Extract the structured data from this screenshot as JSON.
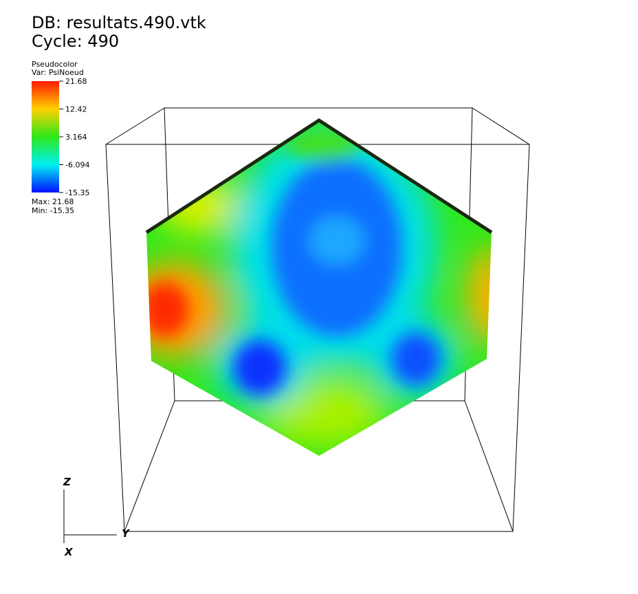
{
  "header": {
    "database": "DB: resultats.490.vtk",
    "cycle": "Cycle: 490"
  },
  "legend": {
    "plot": "Pseudocolor",
    "variable": "Var: PsiNoeud",
    "ticks": [
      "21.68",
      "12.42",
      "3.164",
      "-6.094",
      "-15.35"
    ],
    "max": "Max: 21.68",
    "min": "Min: -15.35"
  },
  "axes": {
    "z": "Z",
    "y": "Y",
    "x": "X"
  }
}
